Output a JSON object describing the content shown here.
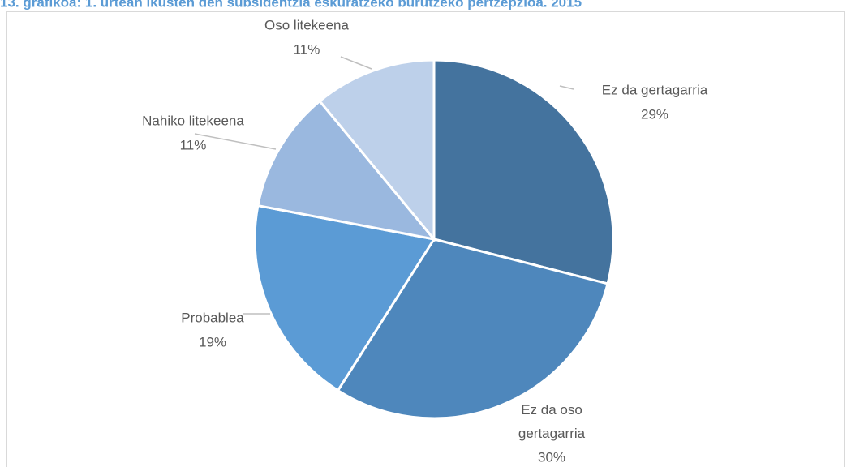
{
  "chart_data": {
    "type": "pie",
    "title": "13. grafikoa: 1. urtean ikusten den subsidentzia eskuratzeko burutzeko pertzepzioa. 2015",
    "categories": [
      "Ez da gertagarria",
      "Ez da oso gertagarria",
      "Probablea",
      "Nahiko litekeena",
      "Oso litekeena"
    ],
    "values": [
      29,
      30,
      19,
      11,
      11
    ],
    "value_labels": [
      "29%",
      "30%",
      "19%",
      "11%",
      "11%"
    ],
    "colors": [
      "#44739e",
      "#4e87bc",
      "#5b9bd5",
      "#9ab8df",
      "#bdd0ea"
    ]
  }
}
